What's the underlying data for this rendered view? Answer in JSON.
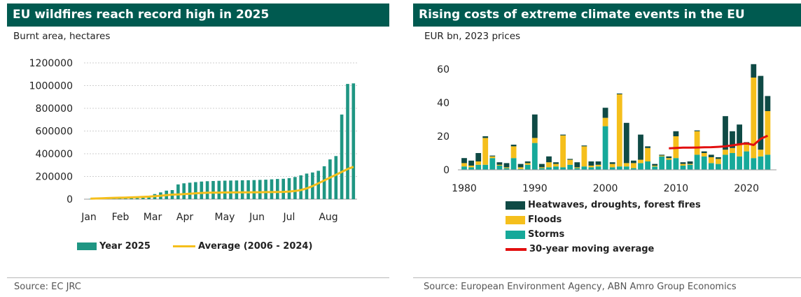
{
  "colors": {
    "header": "#005a50",
    "teal": "#1f9683",
    "yellow": "#f5bf1c",
    "dark": "#0f4a45",
    "storm": "#16a99a",
    "red": "#e20f0f"
  },
  "left": {
    "title": "EU wildfires reach record high in 2025",
    "subtitle": "Burnt area, hectares",
    "source": "Source: EC JRC"
  },
  "right": {
    "title": "Rising costs of extreme climate events in the EU",
    "subtitle": "EUR bn, 2023 prices",
    "source": "Source: European Environment Agency, ABN Amro Group Economics"
  },
  "chart_data": [
    {
      "type": "bar",
      "title": "EU wildfires reach record high in 2025",
      "ylabel": "Burnt area, hectares",
      "ylim": [
        0,
        1200000
      ],
      "yticks": [
        0,
        200000,
        400000,
        600000,
        800000,
        1000000,
        1200000
      ],
      "month_labels": [
        "Jan",
        "Feb",
        "Mar",
        "Apr",
        "May",
        "Jun",
        "Jul",
        "Aug"
      ],
      "legend": [
        {
          "name": "Year 2025",
          "kind": "bar",
          "color": "#1f9683"
        },
        {
          "name": "Average (2006 - 2024)",
          "kind": "line",
          "color": "#f5bf1c"
        }
      ],
      "series": [
        {
          "name": "Year 2025",
          "values": [
            3000,
            5000,
            6000,
            7000,
            9000,
            11000,
            14000,
            18000,
            20000,
            25000,
            30000,
            45000,
            60000,
            75000,
            80000,
            130000,
            140000,
            145000,
            150000,
            155000,
            158000,
            160000,
            162000,
            163000,
            164000,
            165000,
            166000,
            167000,
            168000,
            170000,
            172000,
            175000,
            178000,
            180000,
            185000,
            195000,
            210000,
            225000,
            235000,
            250000,
            290000,
            350000,
            380000,
            745000,
            1015000,
            1020000
          ]
        },
        {
          "name": "Average (2006 - 2024)",
          "values": [
            5000,
            6000,
            8000,
            10000,
            12000,
            13000,
            14000,
            16000,
            18000,
            20000,
            22000,
            26000,
            30000,
            36000,
            40000,
            42000,
            44000,
            48000,
            52000,
            55000,
            57000,
            58000,
            58000,
            59000,
            59000,
            60000,
            60000,
            60000,
            61000,
            61000,
            62000,
            62000,
            63000,
            64000,
            67000,
            72000,
            80000,
            95000,
            115000,
            140000,
            165000,
            190000,
            215000,
            240000,
            265000,
            285000
          ]
        }
      ]
    },
    {
      "type": "bar",
      "title": "Rising costs of extreme climate events in the EU",
      "ylabel": "EUR bn, 2023 prices",
      "ylim": [
        0,
        65
      ],
      "yticks": [
        0,
        20,
        40,
        60
      ],
      "xticks": [
        1980,
        1990,
        2000,
        2010,
        2020
      ],
      "x": [
        1980,
        1981,
        1982,
        1983,
        1984,
        1985,
        1986,
        1987,
        1988,
        1989,
        1990,
        1991,
        1992,
        1993,
        1994,
        1995,
        1996,
        1997,
        1998,
        1999,
        2000,
        2001,
        2002,
        2003,
        2004,
        2005,
        2006,
        2007,
        2008,
        2009,
        2010,
        2011,
        2012,
        2013,
        2014,
        2015,
        2016,
        2017,
        2018,
        2019,
        2020,
        2021,
        2022,
        2023
      ],
      "legend": [
        {
          "name": "Heatwaves, droughts, forest fires",
          "kind": "bar",
          "color": "#0f4a45"
        },
        {
          "name": "Floods",
          "kind": "bar",
          "color": "#f5bf1c"
        },
        {
          "name": "Storms",
          "kind": "bar",
          "color": "#16a99a"
        },
        {
          "name": "30-year moving average",
          "kind": "line",
          "color": "#e20f0f"
        }
      ],
      "series": [
        {
          "name": "Storms",
          "values": [
            2,
            1.5,
            3,
            3,
            7,
            2.5,
            1,
            7,
            0.5,
            3,
            16,
            1,
            1.5,
            2,
            1.5,
            3,
            1,
            2,
            1.5,
            2,
            26,
            1.5,
            2,
            2,
            1,
            4,
            5,
            2,
            8,
            6,
            7,
            2.5,
            3,
            9,
            8,
            4,
            3.5,
            9,
            10,
            8,
            11,
            7,
            8,
            9
          ]
        },
        {
          "name": "Floods",
          "values": [
            2,
            1,
            2,
            16,
            1,
            0.5,
            0.5,
            7,
            1,
            1,
            3,
            0.5,
            3,
            1.5,
            19,
            3,
            0.5,
            12,
            1,
            1,
            5,
            2,
            43,
            2,
            3,
            2,
            8,
            0.5,
            0.5,
            1,
            13,
            1,
            0.5,
            14,
            2,
            3.5,
            3,
            3,
            3,
            7,
            4,
            48,
            4,
            26
          ]
        },
        {
          "name": "Heatwaves, droughts, forest fires",
          "values": [
            3,
            3,
            5,
            1,
            0.5,
            1.5,
            2.5,
            1,
            2,
            1,
            14,
            2,
            3.5,
            1,
            0.5,
            0.5,
            3,
            0.5,
            2.5,
            2,
            6,
            1,
            0.5,
            24,
            1.5,
            15,
            1,
            1,
            0.5,
            1,
            3,
            1,
            1.5,
            0.5,
            1,
            1.5,
            1,
            20,
            10,
            12,
            1.5,
            8,
            44,
            9
          ]
        },
        {
          "name": "30-year moving average",
          "x": [
            2009,
            2010,
            2011,
            2012,
            2013,
            2014,
            2015,
            2016,
            2017,
            2018,
            2019,
            2020,
            2021,
            2022,
            2023
          ],
          "values": [
            12.8,
            13.0,
            13.2,
            13.2,
            13.3,
            13.4,
            13.5,
            13.7,
            14.0,
            14.6,
            15.2,
            15.8,
            14.8,
            18.5,
            20.3
          ]
        }
      ]
    }
  ]
}
